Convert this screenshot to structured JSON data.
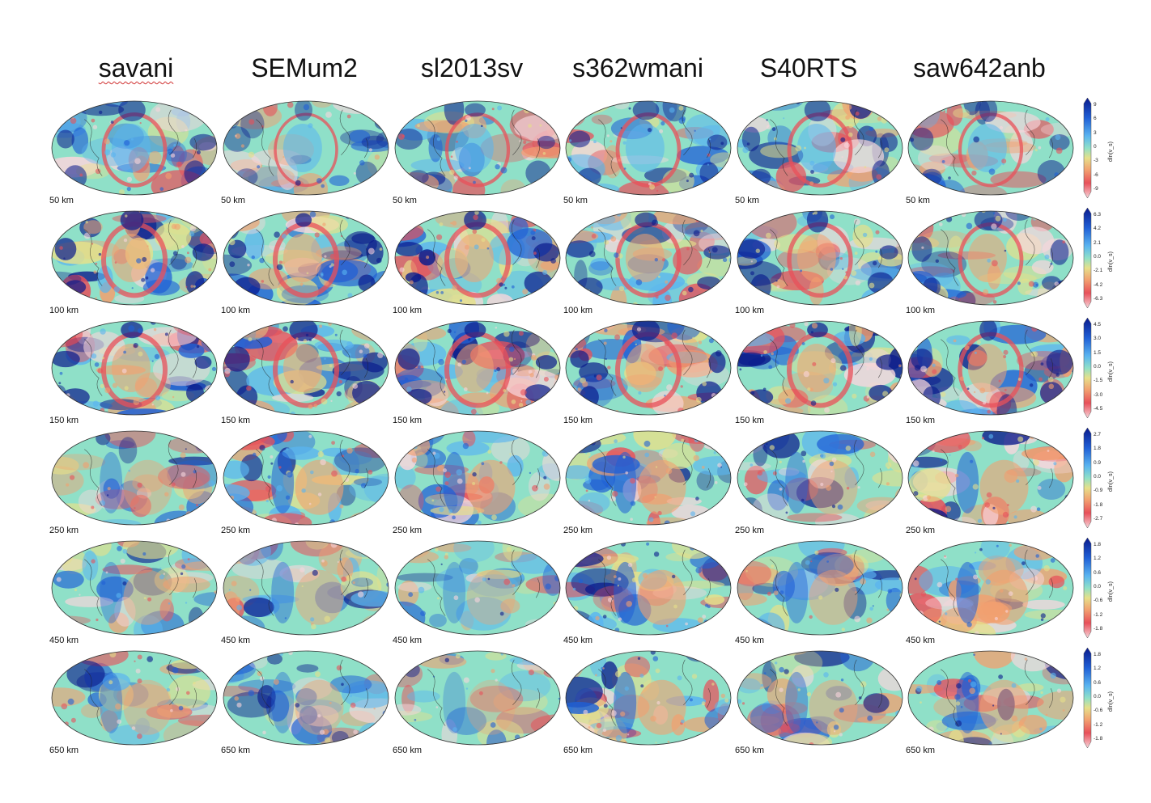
{
  "figure": {
    "models": [
      {
        "name": "savani",
        "spellcheck_underline": true
      },
      {
        "name": "SEMum2",
        "spellcheck_underline": false
      },
      {
        "name": "sl2013sv",
        "spellcheck_underline": false
      },
      {
        "name": "s362wmani",
        "spellcheck_underline": false
      },
      {
        "name": "S40RTS",
        "spellcheck_underline": false
      },
      {
        "name": "saw642anb",
        "spellcheck_underline": false
      }
    ],
    "depths": [
      {
        "label": "50 km",
        "colorbar": {
          "ticks": [
            "9",
            "6",
            "3",
            "0",
            "-3",
            "-6",
            "-9"
          ],
          "title": "dln(v_s)"
        }
      },
      {
        "label": "100 km",
        "colorbar": {
          "ticks": [
            "6.3",
            "4.2",
            "2.1",
            "0.0",
            "-2.1",
            "-4.2",
            "-6.3"
          ],
          "title": "dln(v_s)"
        }
      },
      {
        "label": "150 km",
        "colorbar": {
          "ticks": [
            "4.5",
            "3.0",
            "1.5",
            "0.0",
            "-1.5",
            "-3.0",
            "-4.5"
          ],
          "title": "dln(v_s)"
        }
      },
      {
        "label": "250 km",
        "colorbar": {
          "ticks": [
            "2.7",
            "1.8",
            "0.9",
            "0.0",
            "-0.9",
            "-1.8",
            "-2.7"
          ],
          "title": "dln(v_s)"
        }
      },
      {
        "label": "450 km",
        "colorbar": {
          "ticks": [
            "1.8",
            "1.2",
            "0.6",
            "0.0",
            "-0.6",
            "-1.2",
            "-1.8"
          ],
          "title": "dln(v_s)"
        }
      },
      {
        "label": "650 km",
        "colorbar": {
          "ticks": [
            "1.8",
            "1.2",
            "0.6",
            "0.0",
            "-0.6",
            "-1.2",
            "-1.8"
          ],
          "title": "dln(v_s)"
        }
      }
    ],
    "colors": {
      "fast_dark": "#0a1a8c",
      "fast": "#1f5fd6",
      "fast_light": "#5ab4f0",
      "neutral": "#8fe0c8",
      "neutral_warm": "#e6e08a",
      "slow_light": "#f2a070",
      "slow": "#e8505a",
      "slow_pale": "#f8d6dc"
    },
    "plot_intensity": [
      [
        0.8,
        0.6,
        0.7,
        0.8,
        0.8,
        0.7
      ],
      [
        1.0,
        1.0,
        1.0,
        0.9,
        0.9,
        0.8
      ],
      [
        1.0,
        1.0,
        1.0,
        1.0,
        1.0,
        0.9
      ],
      [
        0.7,
        1.0,
        1.0,
        1.0,
        0.8,
        1.0
      ],
      [
        0.7,
        0.8,
        0.6,
        1.0,
        0.8,
        1.0
      ],
      [
        0.7,
        0.7,
        0.5,
        1.0,
        0.8,
        0.9
      ]
    ]
  }
}
